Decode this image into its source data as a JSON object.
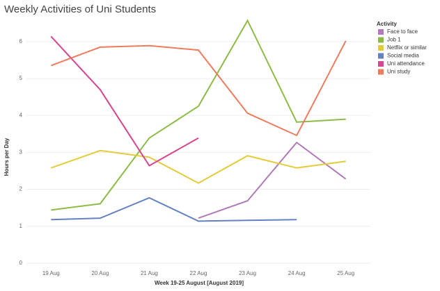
{
  "chart_data": {
    "type": "line",
    "title": "Weekly Activities of Uni Students",
    "x_label": "Week 19-25 August [August 2019]",
    "y_label": "Hours per Day",
    "legend_title": "Activity",
    "legend_position": "right",
    "grid": true,
    "categories": [
      "19 Aug",
      "20 Aug",
      "21 Aug",
      "22 Aug",
      "23 Aug",
      "24 Aug",
      "25 Aug"
    ],
    "ylim": [
      0,
      6.6
    ],
    "yticks": [
      0,
      1,
      2,
      3,
      4,
      5,
      6
    ],
    "series": [
      {
        "name": "Face to face",
        "color": "#b07ab8",
        "values": [
          null,
          null,
          null,
          1.22,
          1.69,
          3.27,
          2.28
        ]
      },
      {
        "name": "Job 1",
        "color": "#8cbb45",
        "values": [
          1.44,
          1.61,
          3.39,
          4.25,
          6.57,
          3.82,
          3.9
        ]
      },
      {
        "name": "Netflix or similar",
        "color": "#e3cc3a",
        "values": [
          2.58,
          3.05,
          2.87,
          2.17,
          2.91,
          2.58,
          2.76
        ]
      },
      {
        "name": "Social media",
        "color": "#6382c2",
        "values": [
          1.18,
          1.22,
          1.77,
          1.14,
          1.16,
          1.18,
          null
        ]
      },
      {
        "name": "Uni attendance",
        "color": "#d4468f",
        "values": [
          6.14,
          4.7,
          2.64,
          3.39,
          null,
          null,
          null
        ]
      },
      {
        "name": "Uni study",
        "color": "#ef7b5d",
        "values": [
          5.35,
          5.85,
          5.89,
          5.77,
          4.06,
          3.46,
          6.02
        ]
      }
    ]
  }
}
